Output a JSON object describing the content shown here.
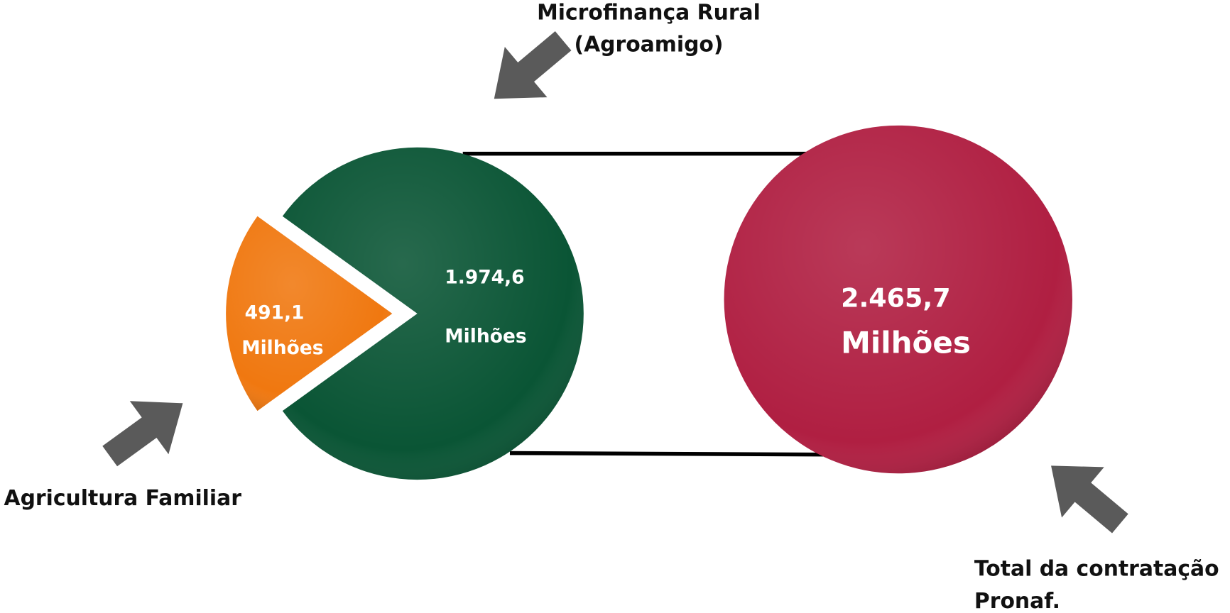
{
  "chart_data": {
    "type": "pie",
    "values": [
      491.1,
      1974.6
    ],
    "value_labels": [
      "491,1",
      "1.974,6"
    ],
    "colors": [
      "#f07810",
      "#0a5535"
    ],
    "unit": "Milhões",
    "total": {
      "value": 2465.7,
      "label": "2.465,7",
      "color": "#b01f42"
    },
    "annotations": [
      {
        "lines": [
          "Microfinança Rural",
          "(Agroamigo)"
        ]
      },
      {
        "lines": [
          "Agricultura Familiar"
        ]
      },
      {
        "lines": [
          "Total da contratação",
          "Pronaf."
        ]
      }
    ]
  }
}
